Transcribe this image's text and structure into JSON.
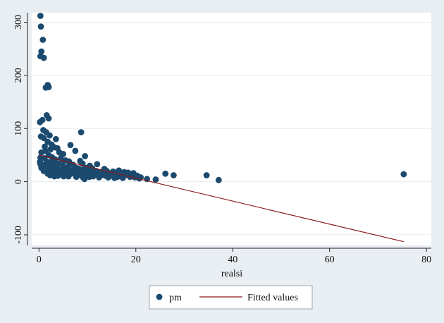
{
  "chart_data": {
    "type": "scatter",
    "title": "",
    "xlabel": "realsi",
    "ylabel": "",
    "xlim": [
      -1.5,
      81
    ],
    "ylim": [
      -120,
      318
    ],
    "xticks": [
      0,
      20,
      40,
      60,
      80
    ],
    "yticks": [
      -100,
      0,
      100,
      200,
      300
    ],
    "xtick_labels": [
      "0",
      "20",
      "40",
      "60",
      "80"
    ],
    "ytick_labels": [
      "-100",
      "0",
      "100",
      "200",
      "300"
    ],
    "grid": true,
    "legend_position": "bottom",
    "colors": {
      "background": "#e9eef3",
      "plot_area": "#ffffff",
      "grid": "#e6ecf1",
      "scatter": "#1b4a6e",
      "fit_line": "#8b1a1a"
    },
    "series": [
      {
        "name": "pm",
        "kind": "scatter",
        "points": [
          [
            0.3,
            312
          ],
          [
            0.4,
            292
          ],
          [
            0.8,
            267
          ],
          [
            0.5,
            245
          ],
          [
            0.3,
            236
          ],
          [
            1.0,
            233
          ],
          [
            1.8,
            182
          ],
          [
            1.4,
            177
          ],
          [
            2.0,
            178
          ],
          [
            1.6,
            125
          ],
          [
            2.0,
            119
          ],
          [
            0.2,
            112
          ],
          [
            0.7,
            116
          ],
          [
            0.9,
            97
          ],
          [
            1.5,
            93
          ],
          [
            8.7,
            93
          ],
          [
            0.4,
            85
          ],
          [
            1.0,
            82
          ],
          [
            2.2,
            87
          ],
          [
            3.5,
            80
          ],
          [
            1.8,
            75
          ],
          [
            2.6,
            70
          ],
          [
            6.5,
            69
          ],
          [
            1.2,
            66
          ],
          [
            3.1,
            65
          ],
          [
            3.8,
            63
          ],
          [
            2.4,
            61
          ],
          [
            7.5,
            58
          ],
          [
            0.5,
            55
          ],
          [
            1.3,
            58
          ],
          [
            4.2,
            55
          ],
          [
            5.0,
            52
          ],
          [
            2.0,
            50
          ],
          [
            9.5,
            48
          ],
          [
            0.3,
            45
          ],
          [
            1.1,
            44
          ],
          [
            2.7,
            46
          ],
          [
            3.3,
            42
          ],
          [
            4.5,
            44
          ],
          [
            5.5,
            40
          ],
          [
            6.2,
            38
          ],
          [
            8.5,
            39
          ],
          [
            0.2,
            37
          ],
          [
            1.6,
            38
          ],
          [
            2.2,
            36
          ],
          [
            3.0,
            35
          ],
          [
            4.0,
            34
          ],
          [
            4.8,
            33
          ],
          [
            7.0,
            32
          ],
          [
            9.0,
            34
          ],
          [
            10.5,
            30
          ],
          [
            12.0,
            33
          ],
          [
            0.3,
            33
          ],
          [
            0.9,
            31
          ],
          [
            1.4,
            29
          ],
          [
            2.5,
            30
          ],
          [
            3.6,
            28
          ],
          [
            5.2,
            27
          ],
          [
            6.0,
            28
          ],
          [
            7.4,
            27
          ],
          [
            8.1,
            25
          ],
          [
            9.6,
            26
          ],
          [
            11.0,
            25
          ],
          [
            13.5,
            24
          ],
          [
            0.5,
            26
          ],
          [
            1.2,
            24
          ],
          [
            2.0,
            22
          ],
          [
            2.9,
            24
          ],
          [
            4.1,
            23
          ],
          [
            5.7,
            22
          ],
          [
            6.8,
            21
          ],
          [
            7.9,
            20
          ],
          [
            8.8,
            22
          ],
          [
            10.1,
            21
          ],
          [
            11.8,
            20
          ],
          [
            12.6,
            18
          ],
          [
            14.0,
            20
          ],
          [
            15.3,
            19
          ],
          [
            16.5,
            21
          ],
          [
            17.6,
            18
          ],
          [
            1.0,
            20
          ],
          [
            3.4,
            19
          ],
          [
            4.6,
            18
          ],
          [
            5.4,
            17
          ],
          [
            6.4,
            18
          ],
          [
            7.2,
            16
          ],
          [
            9.3,
            17
          ],
          [
            10.8,
            16
          ],
          [
            12.2,
            15
          ],
          [
            13.1,
            17
          ],
          [
            14.8,
            15
          ],
          [
            16.0,
            16
          ],
          [
            18.4,
            17
          ],
          [
            19.5,
            16
          ],
          [
            1.8,
            15
          ],
          [
            2.8,
            16
          ],
          [
            4.4,
            14
          ],
          [
            5.9,
            13
          ],
          [
            6.6,
            15
          ],
          [
            8.3,
            13
          ],
          [
            9.8,
            12
          ],
          [
            11.4,
            13
          ],
          [
            12.9,
            12
          ],
          [
            13.8,
            11
          ],
          [
            15.0,
            12
          ],
          [
            16.8,
            11
          ],
          [
            17.8,
            12
          ],
          [
            19.0,
            10
          ],
          [
            20.3,
            11
          ],
          [
            2.3,
            12
          ],
          [
            3.9,
            11
          ],
          [
            5.1,
            10
          ],
          [
            7.7,
            9
          ],
          [
            9.1,
            8
          ],
          [
            10.4,
            9
          ],
          [
            12.4,
            8
          ],
          [
            14.3,
            8
          ],
          [
            16.2,
            9
          ],
          [
            18.8,
            9
          ],
          [
            21.0,
            8
          ],
          [
            3.2,
            10
          ],
          [
            6.1,
            10
          ],
          [
            7.6,
            12
          ],
          [
            8.9,
            10
          ],
          [
            9.4,
            5
          ],
          [
            11.2,
            10
          ],
          [
            15.6,
            7
          ],
          [
            17.3,
            7
          ],
          [
            19.8,
            8
          ],
          [
            20.7,
            6
          ],
          [
            22.3,
            5
          ],
          [
            24.1,
            4
          ],
          [
            26.1,
            15
          ],
          [
            27.8,
            12
          ],
          [
            34.6,
            12
          ],
          [
            37.1,
            3
          ],
          [
            75.3,
            14
          ]
        ]
      },
      {
        "name": "Fitted values",
        "kind": "line",
        "x": [
          0,
          75.3
        ],
        "y": [
          50,
          -113
        ]
      }
    ]
  }
}
